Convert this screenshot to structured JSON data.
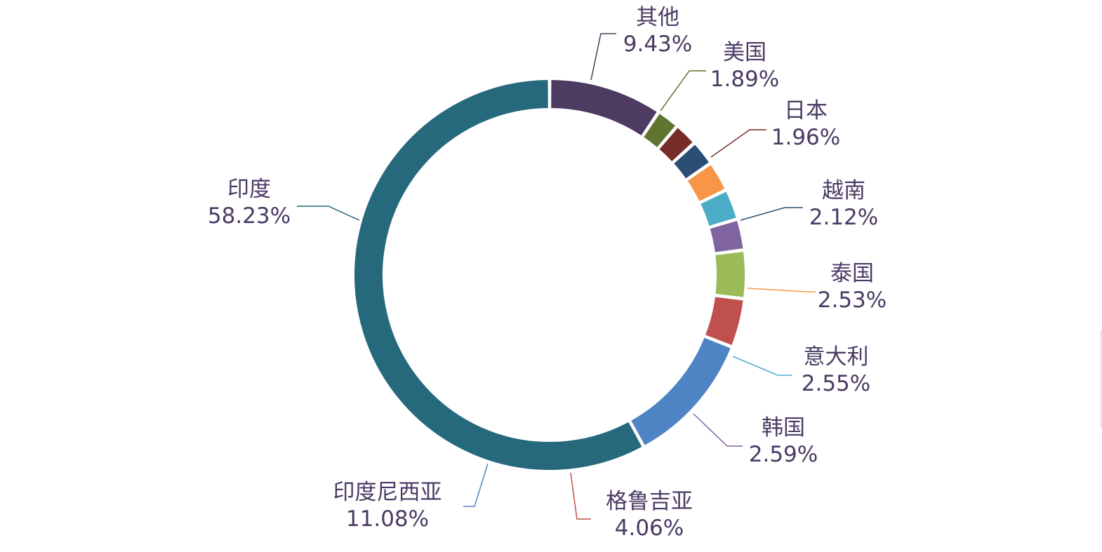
{
  "chart_data": {
    "type": "pie",
    "style": "donut",
    "title": "",
    "legend": "none",
    "series": [
      {
        "name": "印度",
        "value": 58.23,
        "label": "58.23%",
        "color": "#26687c",
        "side": "left"
      },
      {
        "name": "印度尼西亚",
        "value": 11.08,
        "label": "11.08%",
        "color": "#4f84c4",
        "side": "left"
      },
      {
        "name": "格鲁吉亚",
        "value": 4.06,
        "label": "4.06%",
        "color": "#c0504d",
        "side": "right"
      },
      {
        "name": "",
        "value": 4.0,
        "label": "",
        "color": "#9bbb59",
        "side": "right"
      },
      {
        "name": "韩国",
        "value": 2.59,
        "label": "2.59%",
        "color": "#8064a2",
        "side": "right"
      },
      {
        "name": "意大利",
        "value": 2.55,
        "label": "2.55%",
        "color": "#4bacc6",
        "side": "right"
      },
      {
        "name": "泰国",
        "value": 2.53,
        "label": "2.53%",
        "color": "#f79646",
        "side": "right"
      },
      {
        "name": "越南",
        "value": 2.12,
        "label": "2.12%",
        "color": "#2c4d75",
        "side": "right"
      },
      {
        "name": "日本",
        "value": 1.96,
        "label": "1.96%",
        "color": "#772c2a",
        "side": "right"
      },
      {
        "name": "美国",
        "value": 1.89,
        "label": "1.89%",
        "color": "#5f7530",
        "side": "right"
      },
      {
        "name": "其他",
        "value": 9.43,
        "label": "9.43%",
        "color": "#4d3b62",
        "side": "right"
      }
    ],
    "order": "clockwise-from-top"
  }
}
